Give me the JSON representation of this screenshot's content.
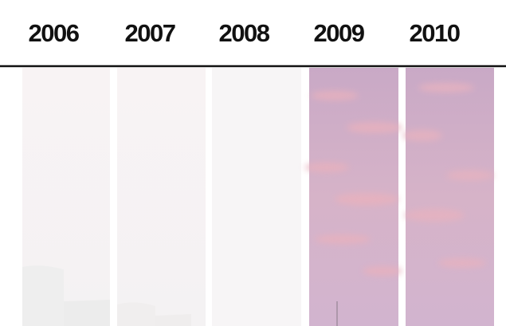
{
  "years": [
    "2006",
    "2007",
    "2008",
    "2009",
    "2010"
  ]
}
